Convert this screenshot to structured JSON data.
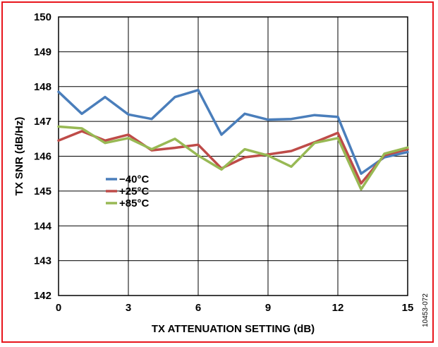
{
  "chart_data": {
    "type": "line",
    "xlabel": "TX ATTENUATION SETTING (dB)",
    "ylabel": "TX SNR (dB/Hz)",
    "xlim": [
      0,
      15
    ],
    "ylim": [
      142,
      150
    ],
    "xticks": [
      0,
      3,
      6,
      9,
      12,
      15
    ],
    "yticks": [
      142,
      143,
      144,
      145,
      146,
      147,
      148,
      149,
      150
    ],
    "grid": true,
    "legend_placement": "left-center",
    "x": [
      0,
      1,
      2,
      3,
      4,
      5,
      6,
      7,
      8,
      9,
      10,
      11,
      12,
      13,
      14,
      15
    ],
    "series": [
      {
        "name": "−40°C",
        "color": "#4a7ebb",
        "values": [
          147.85,
          147.22,
          147.7,
          147.2,
          147.07,
          147.7,
          147.9,
          146.62,
          147.22,
          147.05,
          147.07,
          147.18,
          147.13,
          145.5,
          145.97,
          146.12
        ]
      },
      {
        "name": "+25°C",
        "color": "#be4b48",
        "values": [
          146.45,
          146.72,
          146.45,
          146.62,
          146.17,
          146.24,
          146.33,
          145.65,
          145.97,
          146.05,
          146.15,
          146.4,
          146.67,
          145.22,
          146.03,
          146.2
        ]
      },
      {
        "name": "+85°C",
        "color": "#98b954",
        "values": [
          146.85,
          146.8,
          146.38,
          146.52,
          146.2,
          146.5,
          146.02,
          145.62,
          146.2,
          146.02,
          145.7,
          146.38,
          146.52,
          145.05,
          146.07,
          146.25
        ]
      }
    ]
  },
  "figure_id": "10453-072"
}
